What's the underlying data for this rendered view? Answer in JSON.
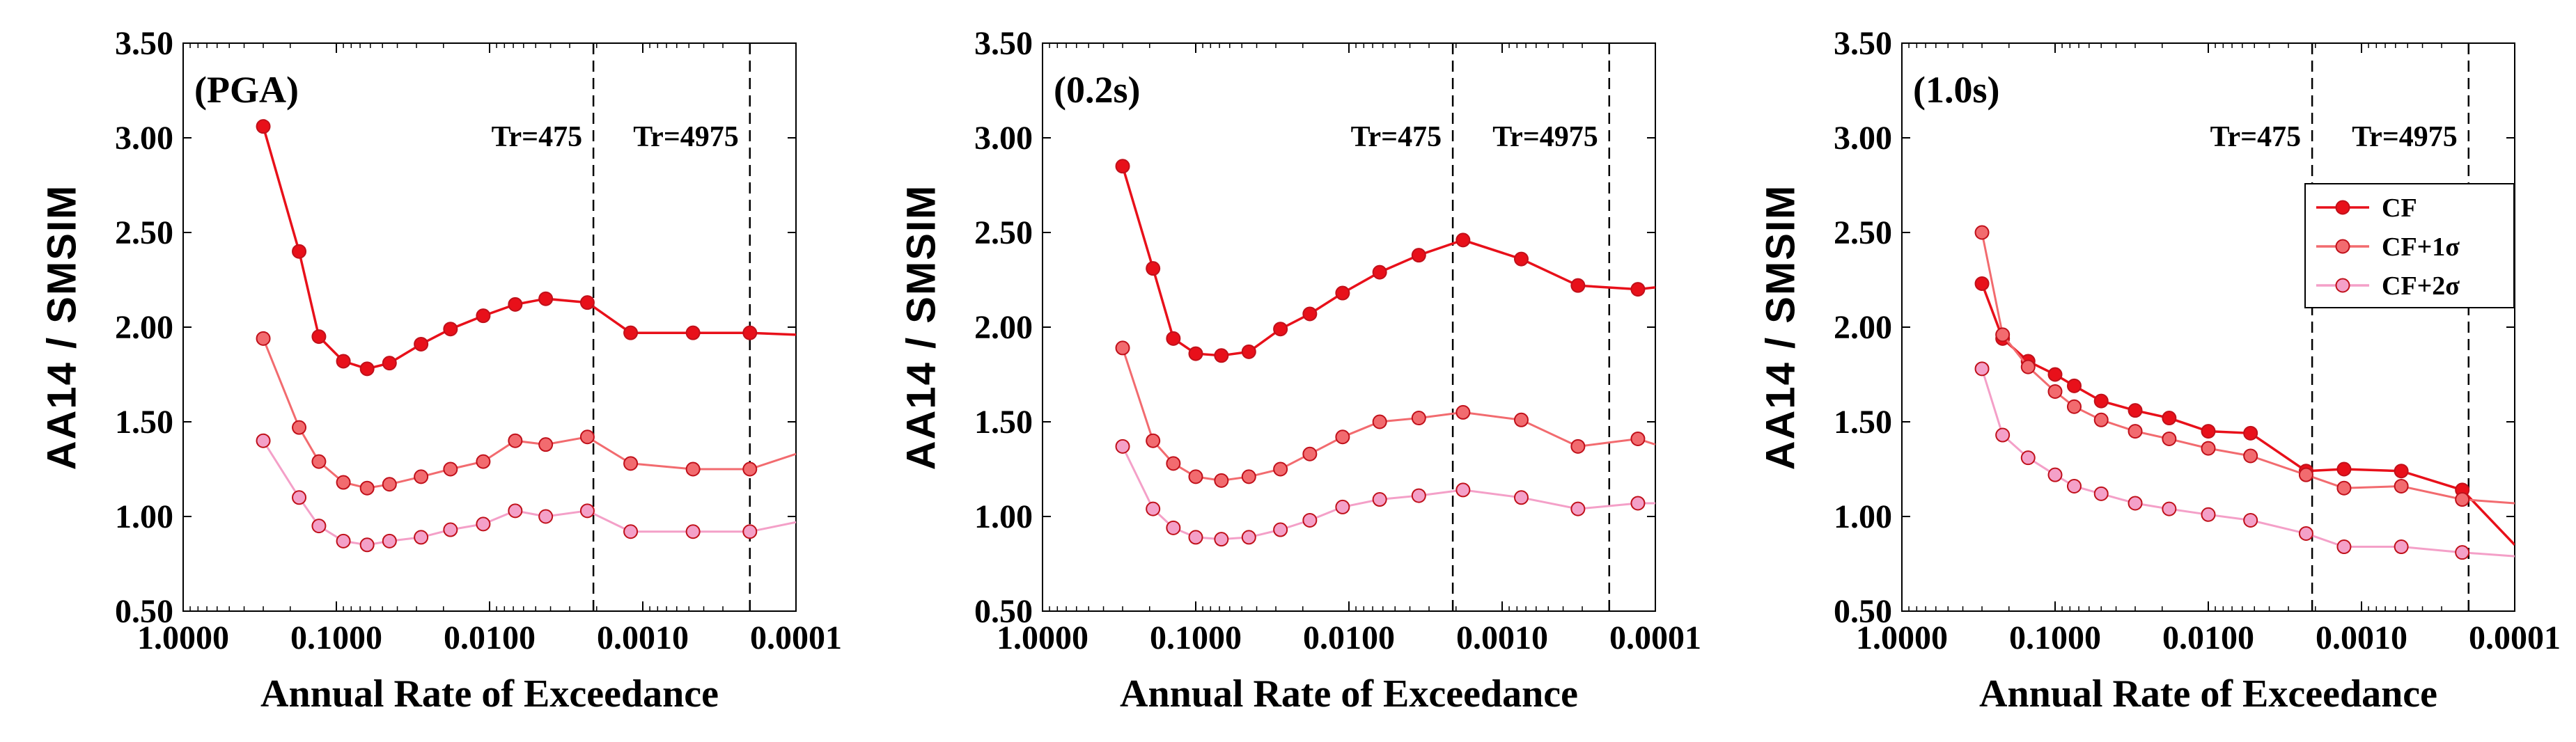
{
  "chart_data": [
    {
      "type": "line",
      "panel_label": "(PGA)",
      "xlabel": "Annual Rate of Exceedance",
      "ylabel": "AA14 / SMSIM",
      "xscale": "log-reversed",
      "xlim": [
        1.0,
        0.0001
      ],
      "ylim": [
        0.5,
        3.5
      ],
      "xticks": [
        "1.0000",
        "0.1000",
        "0.0100",
        "0.0010",
        "0.0001"
      ],
      "yticks": [
        "0.50",
        "1.00",
        "1.50",
        "2.00",
        "2.50",
        "3.00",
        "3.50"
      ],
      "vlines": [
        {
          "x": 0.0021,
          "label": "Tr=475"
        },
        {
          "x": 0.0002,
          "label": "Tr=4975"
        }
      ],
      "series": [
        {
          "name": "CF",
          "color": "#e8101a",
          "x": [
            0.3,
            0.175,
            0.13,
            0.09,
            0.063,
            0.045,
            0.028,
            0.018,
            0.011,
            0.0068,
            0.0043,
            0.0023,
            0.0012,
            0.00047,
            0.0002,
            0.0001
          ],
          "y": [
            3.06,
            2.4,
            1.95,
            1.82,
            1.78,
            1.81,
            1.91,
            1.99,
            2.06,
            2.12,
            2.15,
            2.13,
            1.97,
            1.97,
            1.97,
            1.96
          ],
          "markers": [
            true,
            true,
            true,
            true,
            true,
            true,
            true,
            true,
            true,
            true,
            true,
            true,
            true,
            true,
            true,
            false
          ]
        },
        {
          "name": "CF+1σ",
          "color": "#f26b6f",
          "x": [
            0.3,
            0.175,
            0.13,
            0.09,
            0.063,
            0.045,
            0.028,
            0.018,
            0.011,
            0.0068,
            0.0043,
            0.0023,
            0.0012,
            0.00047,
            0.0002,
            0.0001
          ],
          "y": [
            1.94,
            1.47,
            1.29,
            1.18,
            1.15,
            1.17,
            1.21,
            1.25,
            1.29,
            1.4,
            1.38,
            1.42,
            1.28,
            1.25,
            1.25,
            1.33
          ],
          "markers": [
            true,
            true,
            true,
            true,
            true,
            true,
            true,
            true,
            true,
            true,
            true,
            true,
            true,
            true,
            true,
            false
          ]
        },
        {
          "name": "CF+2σ",
          "color": "#f4a0c8",
          "x": [
            0.3,
            0.175,
            0.13,
            0.09,
            0.063,
            0.045,
            0.028,
            0.018,
            0.011,
            0.0068,
            0.0043,
            0.0023,
            0.0012,
            0.00047,
            0.0002,
            0.0001
          ],
          "y": [
            1.4,
            1.1,
            0.95,
            0.87,
            0.85,
            0.87,
            0.89,
            0.93,
            0.96,
            1.03,
            1.0,
            1.03,
            0.92,
            0.92,
            0.92,
            0.97
          ],
          "markers": [
            true,
            true,
            true,
            true,
            true,
            true,
            true,
            true,
            true,
            true,
            true,
            true,
            true,
            true,
            true,
            false
          ]
        }
      ]
    },
    {
      "type": "line",
      "panel_label": "(0.2s)",
      "xlabel": "Annual Rate of Exceedance",
      "ylabel": "AA14 / SMSIM",
      "xscale": "log-reversed",
      "xlim": [
        1.0,
        0.0001
      ],
      "ylim": [
        0.5,
        3.5
      ],
      "xticks": [
        "1.0000",
        "0.1000",
        "0.0100",
        "0.0010",
        "0.0001"
      ],
      "yticks": [
        "0.50",
        "1.00",
        "1.50",
        "2.00",
        "2.50",
        "3.00",
        "3.50"
      ],
      "vlines": [
        {
          "x": 0.0021,
          "label": "Tr=475"
        },
        {
          "x": 0.0002,
          "label": "Tr=4975"
        }
      ],
      "series": [
        {
          "name": "CF",
          "color": "#e8101a",
          "x": [
            0.3,
            0.19,
            0.14,
            0.1,
            0.068,
            0.045,
            0.028,
            0.018,
            0.011,
            0.0063,
            0.0035,
            0.0018,
            0.00075,
            0.00032,
            0.00013,
            0.0001
          ],
          "y": [
            2.85,
            2.31,
            1.94,
            1.86,
            1.85,
            1.87,
            1.99,
            2.07,
            2.18,
            2.29,
            2.38,
            2.46,
            2.36,
            2.22,
            2.2,
            2.21
          ],
          "markers": [
            true,
            true,
            true,
            true,
            true,
            true,
            true,
            true,
            true,
            true,
            true,
            true,
            true,
            true,
            true,
            false
          ]
        },
        {
          "name": "CF+1σ",
          "color": "#f26b6f",
          "x": [
            0.3,
            0.19,
            0.14,
            0.1,
            0.068,
            0.045,
            0.028,
            0.018,
            0.011,
            0.0063,
            0.0035,
            0.0018,
            0.00075,
            0.00032,
            0.00013,
            0.0001
          ],
          "y": [
            1.89,
            1.4,
            1.28,
            1.21,
            1.19,
            1.21,
            1.25,
            1.33,
            1.42,
            1.5,
            1.52,
            1.55,
            1.51,
            1.37,
            1.41,
            1.38
          ],
          "markers": [
            true,
            true,
            true,
            true,
            true,
            true,
            true,
            true,
            true,
            true,
            true,
            true,
            true,
            true,
            true,
            false
          ]
        },
        {
          "name": "CF+2σ",
          "color": "#f4a0c8",
          "x": [
            0.3,
            0.19,
            0.14,
            0.1,
            0.068,
            0.045,
            0.028,
            0.018,
            0.011,
            0.0063,
            0.0035,
            0.0018,
            0.00075,
            0.00032,
            0.00013,
            0.0001
          ],
          "y": [
            1.37,
            1.04,
            0.94,
            0.89,
            0.88,
            0.89,
            0.93,
            0.98,
            1.05,
            1.09,
            1.11,
            1.14,
            1.1,
            1.04,
            1.07,
            1.07
          ],
          "markers": [
            true,
            true,
            true,
            true,
            true,
            true,
            true,
            true,
            true,
            true,
            true,
            true,
            true,
            true,
            true,
            false
          ]
        }
      ]
    },
    {
      "type": "line",
      "panel_label": "(1.0s)",
      "xlabel": "Annual Rate of Exceedance",
      "ylabel": "AA14 / SMSIM",
      "xscale": "log-reversed",
      "xlim": [
        1.0,
        0.0001
      ],
      "ylim": [
        0.5,
        3.5
      ],
      "xticks": [
        "1.0000",
        "0.1000",
        "0.0100",
        "0.0010",
        "0.0001"
      ],
      "yticks": [
        "0.50",
        "1.00",
        "1.50",
        "2.00",
        "2.50",
        "3.00",
        "3.50"
      ],
      "vlines": [
        {
          "x": 0.0021,
          "label": "Tr=475"
        },
        {
          "x": 0.0002,
          "label": "Tr=4975"
        }
      ],
      "legend": {
        "position": "upper-right",
        "entries": [
          "CF",
          "CF+1σ",
          "CF+2σ"
        ]
      },
      "series": [
        {
          "name": "CF",
          "color": "#e8101a",
          "x": [
            0.3,
            0.22,
            0.15,
            0.1,
            0.075,
            0.05,
            0.03,
            0.018,
            0.01,
            0.0053,
            0.0023,
            0.0013,
            0.00055,
            0.00022,
            0.0001
          ],
          "y": [
            2.23,
            1.94,
            1.82,
            1.75,
            1.69,
            1.61,
            1.56,
            1.52,
            1.45,
            1.44,
            1.24,
            1.25,
            1.24,
            1.14,
            0.85
          ],
          "markers": [
            true,
            true,
            true,
            true,
            true,
            true,
            true,
            true,
            true,
            true,
            true,
            true,
            true,
            true,
            false
          ]
        },
        {
          "name": "CF+1σ",
          "color": "#f26b6f",
          "x": [
            0.3,
            0.22,
            0.15,
            0.1,
            0.075,
            0.05,
            0.03,
            0.018,
            0.01,
            0.0053,
            0.0023,
            0.0013,
            0.00055,
            0.00022,
            0.0001
          ],
          "y": [
            2.5,
            1.96,
            1.79,
            1.66,
            1.58,
            1.51,
            1.45,
            1.41,
            1.36,
            1.32,
            1.22,
            1.15,
            1.16,
            1.09,
            1.07
          ],
          "markers": [
            true,
            true,
            true,
            true,
            true,
            true,
            true,
            true,
            true,
            true,
            true,
            true,
            true,
            true,
            false
          ]
        },
        {
          "name": "CF+2σ",
          "color": "#f4a0c8",
          "x": [
            0.3,
            0.22,
            0.15,
            0.1,
            0.075,
            0.05,
            0.03,
            0.018,
            0.01,
            0.0053,
            0.0023,
            0.0013,
            0.00055,
            0.00022,
            0.0001
          ],
          "y": [
            1.78,
            1.43,
            1.31,
            1.22,
            1.16,
            1.12,
            1.07,
            1.04,
            1.01,
            0.98,
            0.91,
            0.84,
            0.84,
            0.81,
            0.79
          ],
          "markers": [
            true,
            true,
            true,
            true,
            true,
            true,
            true,
            true,
            true,
            true,
            true,
            true,
            true,
            true,
            false
          ]
        }
      ]
    }
  ]
}
